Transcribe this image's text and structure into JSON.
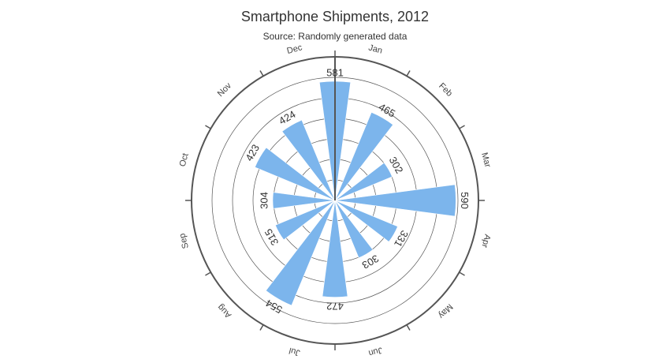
{
  "chart_data": {
    "type": "bar",
    "polar": true,
    "title": "Smartphone Shipments, 2012",
    "subtitle": "Source: Randomly generated data",
    "categories": [
      "Jan",
      "Feb",
      "Mar",
      "Apr",
      "May",
      "Jun",
      "Jul",
      "Aug",
      "Sep",
      "Oct",
      "Nov",
      "Dec"
    ],
    "values": [
      581,
      465,
      302,
      590,
      331,
      303,
      472,
      554,
      315,
      304,
      423,
      424
    ],
    "data_labels": [
      "581",
      "465",
      "302",
      "590",
      "331",
      "303",
      "472",
      "554",
      "315",
      "304",
      "423",
      "424"
    ],
    "ylim": [
      0,
      700
    ],
    "grid": true,
    "legend": "none",
    "colors": {
      "bar": "#7cb5ec",
      "axis": "#555555",
      "grid": "#555555",
      "text": "#333333"
    }
  }
}
